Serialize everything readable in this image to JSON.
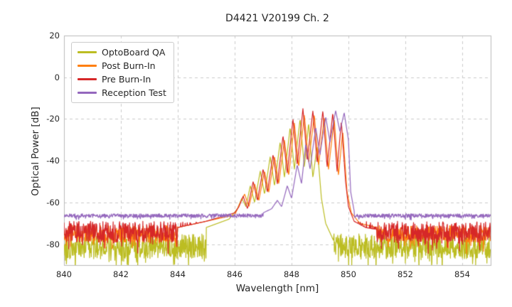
{
  "figure": {
    "title": "D4421 V20199 Ch. 2",
    "xlabel": "Wavelength [nm]",
    "ylabel": "Optical Power [dB]"
  },
  "chart_data": {
    "type": "line",
    "title": "D4421 V20199 Ch. 2",
    "xlabel": "Wavelength [nm]",
    "ylabel": "Optical Power [dB]",
    "xlim": [
      840,
      855
    ],
    "ylim": [
      -90,
      20
    ],
    "xticks": [
      840,
      842,
      844,
      846,
      848,
      850,
      852,
      854
    ],
    "yticks": [
      20,
      0,
      -20,
      -40,
      -60,
      -80
    ],
    "grid": true,
    "grid_style": "dashed",
    "legend_position": "upper left",
    "series": [
      {
        "name": "OptoBoard QA",
        "color": "#bcbd22",
        "noise": {
          "x_start": 840,
          "x_end": 855,
          "floor": -81,
          "amplitude": 6,
          "spike": 9,
          "seed": 101
        },
        "envelope": [
          [
            845.0,
            -72
          ],
          [
            845.8,
            -68
          ],
          [
            846.1,
            -63
          ],
          [
            846.25,
            -58
          ],
          [
            846.4,
            -62
          ],
          [
            846.55,
            -52
          ],
          [
            846.7,
            -60
          ],
          [
            846.9,
            -45
          ],
          [
            847.05,
            -56
          ],
          [
            847.25,
            -38
          ],
          [
            847.4,
            -52
          ],
          [
            847.6,
            -31
          ],
          [
            847.75,
            -48
          ],
          [
            847.95,
            -24
          ],
          [
            848.1,
            -44
          ],
          [
            848.3,
            -20
          ],
          [
            848.45,
            -43
          ],
          [
            848.6,
            -22
          ],
          [
            848.75,
            -48
          ],
          [
            848.9,
            -33
          ],
          [
            849.05,
            -58
          ],
          [
            849.2,
            -70
          ],
          [
            849.5,
            -79
          ]
        ]
      },
      {
        "name": "Post Burn-In",
        "color": "#ff7f0e",
        "noise": {
          "x_start": 840,
          "x_end": 855,
          "floor": -75,
          "amplitude": 4,
          "spike": 6,
          "seed": 202
        },
        "envelope": [
          [
            844.0,
            -72
          ],
          [
            845.0,
            -69
          ],
          [
            846.0,
            -66
          ],
          [
            846.2,
            -60
          ],
          [
            846.35,
            -56
          ],
          [
            846.5,
            -62
          ],
          [
            846.7,
            -51
          ],
          [
            846.85,
            -59
          ],
          [
            847.05,
            -45
          ],
          [
            847.2,
            -55
          ],
          [
            847.4,
            -38
          ],
          [
            847.55,
            -51
          ],
          [
            847.75,
            -30
          ],
          [
            847.9,
            -47
          ],
          [
            848.1,
            -22
          ],
          [
            848.25,
            -43
          ],
          [
            848.45,
            -18
          ],
          [
            848.6,
            -41
          ],
          [
            848.8,
            -18
          ],
          [
            848.95,
            -42
          ],
          [
            849.15,
            -19
          ],
          [
            849.3,
            -44
          ],
          [
            849.5,
            -20
          ],
          [
            849.65,
            -47
          ],
          [
            849.8,
            -26
          ],
          [
            849.95,
            -55
          ],
          [
            850.1,
            -65
          ],
          [
            850.4,
            -70
          ],
          [
            851.0,
            -72
          ]
        ]
      },
      {
        "name": "Pre Burn-In",
        "color": "#d62728",
        "noise": {
          "x_start": 840,
          "x_end": 855,
          "floor": -74,
          "amplitude": 5,
          "spike": 7,
          "seed": 303
        },
        "envelope": [
          [
            844.0,
            -72
          ],
          [
            845.0,
            -69
          ],
          [
            845.5,
            -67
          ],
          [
            846.0,
            -65
          ],
          [
            846.15,
            -62
          ],
          [
            846.3,
            -57
          ],
          [
            846.45,
            -63
          ],
          [
            846.65,
            -50
          ],
          [
            846.8,
            -59
          ],
          [
            847.0,
            -44
          ],
          [
            847.15,
            -55
          ],
          [
            847.35,
            -37
          ],
          [
            847.5,
            -51
          ],
          [
            847.7,
            -28
          ],
          [
            847.85,
            -46
          ],
          [
            848.05,
            -20
          ],
          [
            848.2,
            -42
          ],
          [
            848.4,
            -15
          ],
          [
            848.55,
            -40
          ],
          [
            848.75,
            -16
          ],
          [
            848.9,
            -41
          ],
          [
            849.1,
            -16
          ],
          [
            849.25,
            -43
          ],
          [
            849.45,
            -17
          ],
          [
            849.6,
            -45
          ],
          [
            849.75,
            -21
          ],
          [
            849.9,
            -50
          ],
          [
            850.0,
            -62
          ],
          [
            850.2,
            -69
          ],
          [
            850.6,
            -72
          ],
          [
            851.0,
            -73
          ]
        ]
      },
      {
        "name": "Reception Test",
        "color": "#9467bd",
        "noise": {
          "x_start": 840,
          "x_end": 855,
          "floor": -66.3,
          "amplitude": 0.9,
          "spike": 1.2,
          "seed": 404
        },
        "envelope": [
          [
            847.0,
            -65
          ],
          [
            847.3,
            -63
          ],
          [
            847.5,
            -59
          ],
          [
            847.65,
            -62
          ],
          [
            847.85,
            -52
          ],
          [
            848.0,
            -58
          ],
          [
            848.2,
            -42
          ],
          [
            848.35,
            -51
          ],
          [
            848.5,
            -32
          ],
          [
            848.65,
            -44
          ],
          [
            848.85,
            -24
          ],
          [
            849.0,
            -37
          ],
          [
            849.2,
            -19
          ],
          [
            849.35,
            -31
          ],
          [
            849.55,
            -16
          ],
          [
            849.7,
            -26
          ],
          [
            849.85,
            -17
          ],
          [
            850.0,
            -30
          ],
          [
            850.08,
            -55
          ],
          [
            850.2,
            -64
          ]
        ]
      }
    ]
  }
}
